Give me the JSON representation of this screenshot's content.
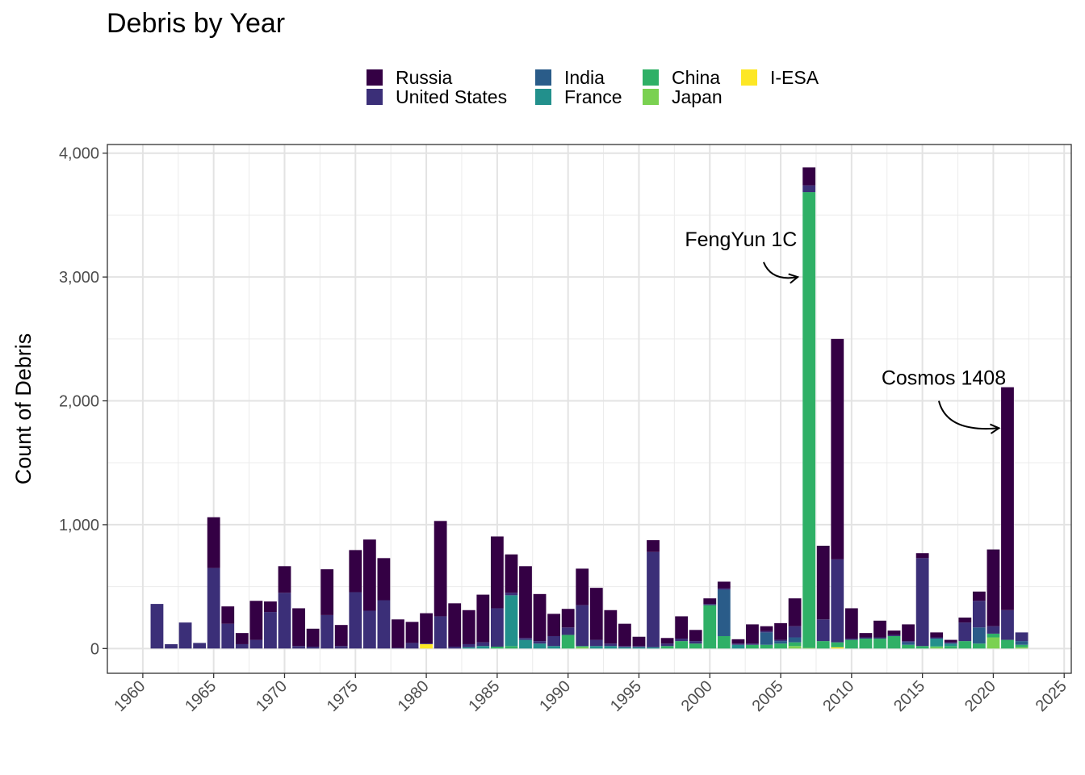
{
  "chart_data": {
    "type": "bar",
    "stacked": true,
    "title": "Debris by Year",
    "xlabel": "",
    "ylabel": "Count of Debris",
    "xlim": [
      1957.5,
      2025.5
    ],
    "ylim": [
      -200,
      4070
    ],
    "x_ticks": [
      "1960",
      "1965",
      "1970",
      "1975",
      "1980",
      "1985",
      "1990",
      "1995",
      "2000",
      "2005",
      "2010",
      "2015",
      "2020",
      "2025"
    ],
    "y_ticks": [
      "0",
      "1,000",
      "2,000",
      "3,000",
      "4,000"
    ],
    "y_tick_values": [
      0,
      1000,
      2000,
      3000,
      4000
    ],
    "grid": true,
    "legend_position": "top",
    "colors": {
      "I-ESA": "#fde725",
      "Japan": "#7ad151",
      "China": "#2fb066",
      "France": "#22908c",
      "India": "#2a5c89",
      "United States": "#3b2f78",
      "Russia": "#340044"
    },
    "legend": [
      {
        "name": "Russia",
        "color": "#340044"
      },
      {
        "name": "United States",
        "color": "#3b2f78"
      },
      {
        "name": "India",
        "color": "#2a5c89"
      },
      {
        "name": "France",
        "color": "#22908c"
      },
      {
        "name": "China",
        "color": "#2fb066"
      },
      {
        "name": "Japan",
        "color": "#7ad151"
      },
      {
        "name": "I-ESA",
        "color": "#fde725"
      }
    ],
    "stack_order": [
      "I-ESA",
      "Japan",
      "China",
      "France",
      "India",
      "United States",
      "Russia"
    ],
    "years": [
      {
        "x": 1961,
        "United States": 360
      },
      {
        "x": 1962,
        "United States": 35
      },
      {
        "x": 1963,
        "United States": 210
      },
      {
        "x": 1964,
        "United States": 45
      },
      {
        "x": 1965,
        "United States": 650,
        "Russia": 410
      },
      {
        "x": 1966,
        "United States": 200,
        "Russia": 140
      },
      {
        "x": 1967,
        "United States": 35,
        "Russia": 90
      },
      {
        "x": 1968,
        "United States": 70,
        "Russia": 315
      },
      {
        "x": 1969,
        "United States": 295,
        "Russia": 85
      },
      {
        "x": 1970,
        "United States": 450,
        "Russia": 215
      },
      {
        "x": 1971,
        "United States": 20,
        "Russia": 305
      },
      {
        "x": 1972,
        "United States": 15,
        "Russia": 145
      },
      {
        "x": 1973,
        "United States": 270,
        "Russia": 370
      },
      {
        "x": 1974,
        "United States": 20,
        "Russia": 170
      },
      {
        "x": 1975,
        "United States": 455,
        "Russia": 340
      },
      {
        "x": 1976,
        "United States": 305,
        "Russia": 575
      },
      {
        "x": 1977,
        "United States": 390,
        "Russia": 340
      },
      {
        "x": 1978,
        "United States": 5,
        "Russia": 230
      },
      {
        "x": 1979,
        "United States": 45,
        "Russia": 170
      },
      {
        "x": 1980,
        "I-ESA": 35,
        "United States": 5,
        "Russia": 245
      },
      {
        "x": 1981,
        "United States": 260,
        "Russia": 770
      },
      {
        "x": 1982,
        "United States": 15,
        "Russia": 350
      },
      {
        "x": 1983,
        "France": 10,
        "United States": 25,
        "Russia": 275
      },
      {
        "x": 1984,
        "France": 20,
        "United States": 30,
        "Russia": 385
      },
      {
        "x": 1985,
        "China": 15,
        "United States": 310,
        "Russia": 580
      },
      {
        "x": 1986,
        "China": 20,
        "France": 410,
        "United States": 20,
        "Russia": 310
      },
      {
        "x": 1987,
        "France": 70,
        "United States": 15,
        "Russia": 580
      },
      {
        "x": 1988,
        "France": 40,
        "United States": 20,
        "Russia": 380
      },
      {
        "x": 1989,
        "France": 20,
        "United States": 80,
        "Russia": 180
      },
      {
        "x": 1990,
        "China": 110,
        "United States": 60,
        "Russia": 150
      },
      {
        "x": 1991,
        "Japan": 10,
        "China": 10,
        "United States": 330,
        "Russia": 295
      },
      {
        "x": 1992,
        "France": 20,
        "United States": 50,
        "Russia": 420
      },
      {
        "x": 1993,
        "France": 20,
        "United States": 20,
        "Russia": 270
      },
      {
        "x": 1994,
        "France": 10,
        "United States": 10,
        "Russia": 180
      },
      {
        "x": 1995,
        "France": 10,
        "United States": 10,
        "Russia": 75
      },
      {
        "x": 1996,
        "France": 10,
        "United States": 770,
        "Russia": 95
      },
      {
        "x": 1997,
        "China": 20,
        "United States": 20,
        "Russia": 45
      },
      {
        "x": 1998,
        "China": 60,
        "United States": 20,
        "Russia": 180
      },
      {
        "x": 1999,
        "China": 40,
        "United States": 20,
        "Russia": 90
      },
      {
        "x": 2000,
        "China": 350,
        "United States": 10,
        "Russia": 45
      },
      {
        "x": 2001,
        "China": 100,
        "India": 375,
        "United States": 10,
        "Russia": 55
      },
      {
        "x": 2002,
        "France": 30,
        "United States": 10,
        "Russia": 35
      },
      {
        "x": 2003,
        "China": 30,
        "United States": 10,
        "Russia": 155
      },
      {
        "x": 2004,
        "China": 30,
        "India": 100,
        "United States": 10,
        "Russia": 40
      },
      {
        "x": 2005,
        "China": 40,
        "India": 20,
        "United States": 10,
        "Russia": 135
      },
      {
        "x": 2006,
        "Japan": 20,
        "China": 30,
        "India": 40,
        "United States": 90,
        "Russia": 225
      },
      {
        "x": 2007,
        "Japan": 5,
        "China": 3680,
        "United States": 55,
        "Russia": 145
      },
      {
        "x": 2008,
        "China": 60,
        "United States": 175,
        "Russia": 595
      },
      {
        "x": 2009,
        "I-ESA": 10,
        "China": 40,
        "United States": 670,
        "Russia": 1780
      },
      {
        "x": 2010,
        "China": 70,
        "United States": 10,
        "Russia": 245
      },
      {
        "x": 2011,
        "China": 80,
        "United States": 10,
        "Russia": 35
      },
      {
        "x": 2012,
        "China": 80,
        "United States": 10,
        "Russia": 135
      },
      {
        "x": 2013,
        "China": 100,
        "United States": 10,
        "Russia": 35
      },
      {
        "x": 2014,
        "China": 30,
        "India": 20,
        "United States": 10,
        "Russia": 135
      },
      {
        "x": 2015,
        "China": 20,
        "United States": 710,
        "Russia": 40
      },
      {
        "x": 2016,
        "Japan": 10,
        "China": 10,
        "France": 60,
        "United States": 10,
        "Russia": 40
      },
      {
        "x": 2017,
        "China": 20,
        "France": 20,
        "United States": 10,
        "Russia": 20
      },
      {
        "x": 2018,
        "China": 60,
        "United States": 150,
        "Russia": 40
      },
      {
        "x": 2019,
        "China": 40,
        "India": 130,
        "United States": 215,
        "Russia": 75
      },
      {
        "x": 2020,
        "Japan": 90,
        "China": 30,
        "United States": 60,
        "Russia": 620
      },
      {
        "x": 2021,
        "China": 70,
        "United States": 240,
        "Russia": 1800
      },
      {
        "x": 2022,
        "Japan": 10,
        "China": 20,
        "India": 30,
        "United States": 70
      }
    ],
    "annotations": [
      {
        "text": "FengYun 1C",
        "x": 2002.2,
        "y": 3250,
        "arrow_to": [
          2006.2,
          3000
        ]
      },
      {
        "text": "Cosmos 1408",
        "x": 2016.5,
        "y": 2130,
        "arrow_to": [
          2020.4,
          1780
        ]
      }
    ]
  }
}
